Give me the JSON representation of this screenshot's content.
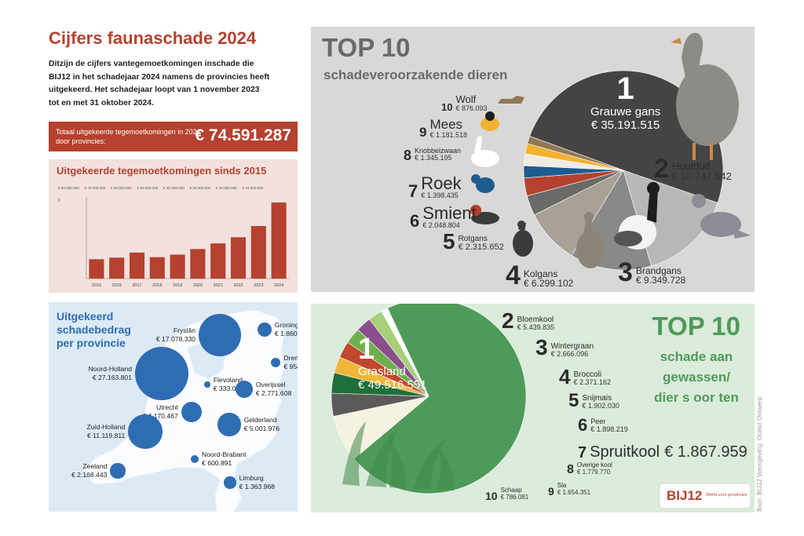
{
  "header": {
    "title": "Cijfers faunaschade 2024",
    "intro": "Ditzijn de cijfers vantegemoetkomingen inschade die\nBIJ12 in het schadejaar 2024 namens de provincies heeft\nuitgekeerd. Het schadejaar loopt van 1 november 2023\ntot en met 31 oktober 2024."
  },
  "total": {
    "label": "Totaal uitgekeerde tegemoetkomingen in 2024 door provincies:",
    "value": "€ 74.591.287"
  },
  "colors": {
    "brand_red": "#b5412e",
    "bar_fill": "#b5412e",
    "map_blue": "#2f6db3",
    "crops_green": "#4e9b59",
    "animals_dark": "#454443"
  },
  "chart_data": {
    "type": "bar",
    "title": "Uitgekeerde tegemoetkomingen sinds 2015",
    "categories": [
      "2015",
      "2016",
      "2017",
      "2018",
      "2019",
      "2020",
      "2021",
      "2022",
      "2023",
      "2024"
    ],
    "values": [
      19000000,
      20500000,
      25500000,
      21000000,
      23500000,
      29000000,
      34500000,
      40500000,
      51500000,
      74591287
    ],
    "ylim": [
      0,
      80000000
    ],
    "y_tick_labels": [
      "0",
      "€ 10.000.000",
      "€ 20.000.000",
      "€ 30.000.000",
      "€ 40.000.000",
      "€ 50.000.000",
      "€ 60.000.000",
      "€ 70.000.000",
      "€ 80.000.000"
    ]
  },
  "map": {
    "title": "Uitgekeerd\nschadebedrag\nper provincie",
    "provinces": [
      {
        "name": "Groningen",
        "value": "€ 1.860.091",
        "amount": 1860091
      },
      {
        "name": "Fryslân",
        "value": "€ 17.078.330",
        "amount": 17078330
      },
      {
        "name": "Drenthe",
        "value": "€ 958.900",
        "amount": 958900
      },
      {
        "name": "Noord-Holland",
        "value": "€ 27.163.801",
        "amount": 27163801
      },
      {
        "name": "Flevoland",
        "value": "€ 333.001",
        "amount": 333001
      },
      {
        "name": "Overijssel",
        "value": "€ 2.771.608",
        "amount": 2771608
      },
      {
        "name": "Utrecht",
        "value": "€ 4.170.467",
        "amount": 4170467
      },
      {
        "name": "Zuid-Holland",
        "value": "€ 11.119.811",
        "amount": 11119811
      },
      {
        "name": "Gelderland",
        "value": "€ 5.001.976",
        "amount": 5001976
      },
      {
        "name": "Noord-Brabant",
        "value": "€ 600.891",
        "amount": 600891
      },
      {
        "name": "Zeeland",
        "value": "€ 2.168.443",
        "amount": 2168443
      },
      {
        "name": "Limburg",
        "value": "€ 1.363.968",
        "amount": 1363968
      }
    ]
  },
  "animals": {
    "title": "TOP 10",
    "subtitle": "schadeveroorzakende dieren",
    "items": [
      {
        "rank": "1",
        "name": "Grauwe gans",
        "value": "€ 35.191.515",
        "amount": 35191515,
        "color": "#454443"
      },
      {
        "rank": "2",
        "name": "Houtduif",
        "value": "€ 10.747.642",
        "amount": 10747642,
        "color": "#b9b8b7"
      },
      {
        "rank": "3",
        "name": "Brandgans",
        "value": "€ 9.349.728",
        "amount": 9349728,
        "color": "#8a8988"
      },
      {
        "rank": "4",
        "name": "Kolgans",
        "value": "€ 6.299.102",
        "amount": 6299102,
        "color": "#a9a195"
      },
      {
        "rank": "5",
        "name": "Rotgans",
        "value": "€ 2.315.652",
        "amount": 2315652,
        "color": "#6b6a69"
      },
      {
        "rank": "6",
        "name": "Smient",
        "value": "€ 2.048.804",
        "amount": 2048804,
        "color": "#b5412e"
      },
      {
        "rank": "7",
        "name": "Roek",
        "value": "€ 1.398.435",
        "amount": 1398435,
        "color": "#1e5b8f"
      },
      {
        "rank": "8",
        "name": "Knobbelzwaan",
        "value": "€ 1.345.195",
        "amount": 1345195,
        "color": "#f0ece4"
      },
      {
        "rank": "9",
        "name": "Mees",
        "value": "€ 1.181.518",
        "amount": 1181518,
        "color": "#f2b233"
      },
      {
        "rank": "10",
        "name": "Wolf",
        "value": "€ 876.093",
        "amount": 876093,
        "color": "#8f7a55"
      }
    ]
  },
  "crops": {
    "title": "TOP 10",
    "subtitle": "schade aan\ngewassen/\ndier s oor ten",
    "credit": "Bron: BIJ12 Vormgeving: Ocelot Ontwerp",
    "logo_mark": "BIJ12",
    "logo_tag": "Werkt voor provincies",
    "items": [
      {
        "rank": "1",
        "name": "Grasland",
        "value": "€ 49.516.551",
        "amount": 49516551,
        "color": "#4e9b59"
      },
      {
        "rank": "2",
        "name": "Bloemkool",
        "value": "€ 5.439.835",
        "amount": 5439835,
        "color": "#f6f2e2"
      },
      {
        "rank": "3",
        "name": "Wintergraan",
        "value": "€ 2.666.096",
        "amount": 2666096,
        "color": "#5c5a58"
      },
      {
        "rank": "4",
        "name": "Broccoli",
        "value": "€ 2.371.162",
        "amount": 2371162,
        "color": "#1f6f3a"
      },
      {
        "rank": "5",
        "name": "Snijmais",
        "value": "€ 1.902.030",
        "amount": 1902030,
        "color": "#f0b63a"
      },
      {
        "rank": "6",
        "name": "Peer",
        "value": "€ 1.898.219",
        "amount": 1898219,
        "color": "#c2472f"
      },
      {
        "rank": "7",
        "name": "Spruitkool",
        "value": "€ 1.867.959",
        "amount": 1867959,
        "color": "#6fb04d"
      },
      {
        "rank": "8",
        "name": "Overige kool",
        "value": "€ 1.779.770",
        "amount": 1779770,
        "color": "#8a4f8c"
      },
      {
        "rank": "9",
        "name": "Sla",
        "value": "€ 1.654.351",
        "amount": 1654351,
        "color": "#a8cf7a"
      },
      {
        "rank": "10",
        "name": "Schaap",
        "value": "€ 786.081",
        "amount": 786081,
        "color": "#ffffff"
      }
    ]
  }
}
